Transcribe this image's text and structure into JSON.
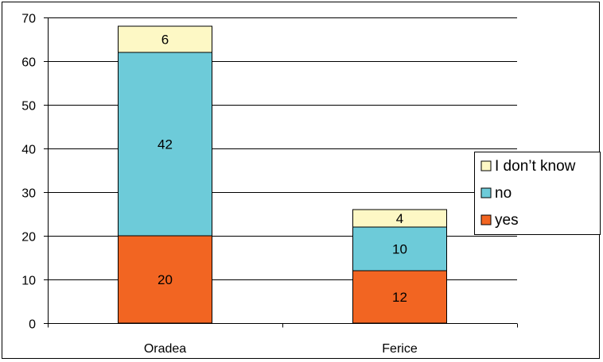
{
  "chart_data": {
    "type": "bar",
    "stacked": true,
    "categories": [
      "Oradea",
      "Ferice"
    ],
    "series": [
      {
        "name": "yes",
        "values": [
          20,
          12
        ],
        "color": "#f26522"
      },
      {
        "name": "no",
        "values": [
          42,
          10
        ],
        "color": "#6dcbd9"
      },
      {
        "name": "I don’t know",
        "values": [
          6,
          4
        ],
        "color": "#fdf8c5"
      }
    ],
    "legend_order": [
      "I don’t know",
      "no",
      "yes"
    ],
    "title": "",
    "xlabel": "",
    "ylabel": "",
    "ylim": [
      0,
      70
    ],
    "yticks": [
      0,
      10,
      20,
      30,
      40,
      50,
      60,
      70
    ],
    "grid": true,
    "legend_position": "right"
  }
}
